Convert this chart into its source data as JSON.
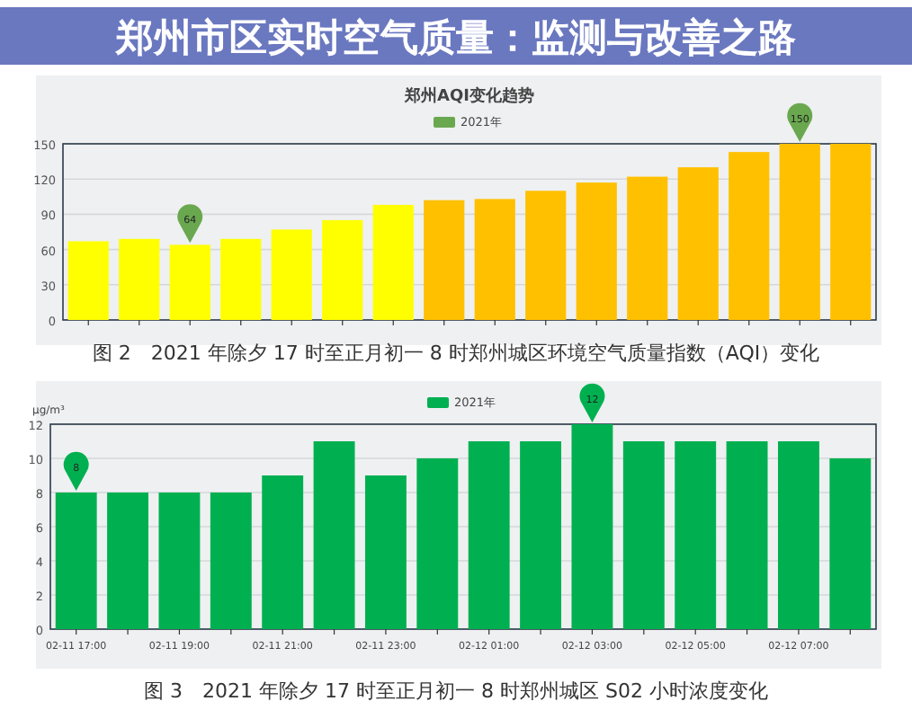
{
  "chart_data": [
    {
      "type": "bar",
      "title": "郑州AQI变化趋势",
      "categories": [
        null,
        null,
        null,
        null,
        null,
        null,
        null,
        null,
        null,
        null,
        null,
        null,
        null,
        null,
        null,
        null
      ],
      "series": [
        {
          "name": "2021年",
          "color": "#6aa84f",
          "values": [
            67,
            69,
            64,
            69,
            77,
            85,
            98,
            102,
            103,
            110,
            117,
            122,
            130,
            143,
            150,
            150
          ],
          "colors": [
            "#ffff00",
            "#ffff00",
            "#ffff00",
            "#ffff00",
            "#ffff00",
            "#ffff00",
            "#ffff00",
            "#ffc000",
            "#ffc000",
            "#ffc000",
            "#ffc000",
            "#ffc000",
            "#ffc000",
            "#ffc000",
            "#ffc000",
            "#ffc000"
          ],
          "value_labels": [
            null,
            null,
            "64",
            null,
            null,
            null,
            null,
            null,
            null,
            null,
            null,
            null,
            null,
            null,
            "150",
            null
          ]
        }
      ],
      "ylim": [
        0,
        150
      ],
      "yticks": [
        0,
        30,
        60,
        90,
        120,
        150
      ],
      "grid": "y",
      "legend": "top",
      "annotations": [
        "郑州市区实时空气质量：监测与改善之路",
        "图 2　2021 年除夕 17 时至正月初一 8 时郑州城区环境空气质量指数（AQI）变化"
      ]
    },
    {
      "type": "bar",
      "ylabel": "μg/m³",
      "categories": [
        "02-11 17:00",
        null,
        "02-11 19:00",
        null,
        "02-11 21:00",
        null,
        "02-11 23:00",
        null,
        "02-12 01:00",
        null,
        "02-12 03:00",
        null,
        "02-12 05:00",
        null,
        "02-12 07:00",
        null
      ],
      "series": [
        {
          "name": "2021年",
          "color": "#00b050",
          "values": [
            8,
            8,
            8,
            8,
            9,
            11,
            9,
            10,
            11,
            11,
            12,
            11,
            11,
            11,
            11,
            10
          ],
          "value_labels": [
            "8",
            null,
            null,
            null,
            null,
            null,
            null,
            null,
            null,
            null,
            "12",
            null,
            null,
            null,
            null,
            null
          ]
        }
      ],
      "ylim": [
        0,
        12
      ],
      "yticks": [
        0,
        2,
        4,
        6,
        8,
        10,
        12
      ],
      "grid": "y",
      "legend": "top",
      "annotations": [
        "图 3　2021 年除夕 17 时至正月初一 8 时郑州城区 S02 小时浓度变化"
      ]
    }
  ]
}
